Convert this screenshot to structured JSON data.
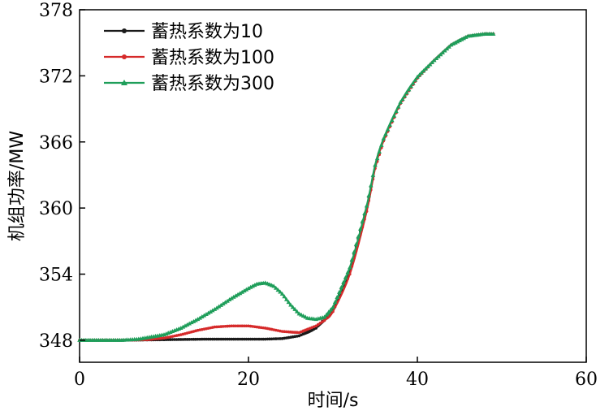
{
  "chart_data": {
    "type": "line",
    "xlabel": "时间/s",
    "ylabel": "机组功率/MW",
    "xlim": [
      0,
      60
    ],
    "ylim": [
      346,
      378
    ],
    "xticks": [
      0,
      20,
      40,
      60
    ],
    "yticks": [
      348,
      354,
      360,
      366,
      372,
      378
    ],
    "grid": false,
    "legend_position": "top-left",
    "series": [
      {
        "name": "蓄热系数为10",
        "color": "#1a1a1a",
        "marker": "circle",
        "x": [
          0,
          5,
          10,
          15,
          20,
          22,
          24,
          26,
          28,
          30,
          32,
          34,
          35,
          36,
          38,
          40,
          42,
          44,
          46,
          48,
          49
        ],
        "y": [
          348.0,
          348.0,
          348.05,
          348.1,
          348.1,
          348.1,
          348.15,
          348.4,
          349.1,
          350.8,
          354.4,
          360.0,
          363.8,
          366.2,
          369.5,
          371.8,
          373.4,
          374.8,
          375.6,
          375.8,
          375.8
        ]
      },
      {
        "name": "蓄热系数为100",
        "color": "#d62a2a",
        "marker": "circle",
        "x": [
          0,
          5,
          8,
          10,
          12,
          14,
          16,
          18,
          20,
          22,
          24,
          26,
          28,
          29,
          30,
          32,
          34,
          35,
          36,
          38,
          40,
          42,
          44,
          46,
          48,
          49
        ],
        "y": [
          348.0,
          348.0,
          348.05,
          348.2,
          348.5,
          348.9,
          349.2,
          349.3,
          349.3,
          349.1,
          348.8,
          348.7,
          349.3,
          349.8,
          350.6,
          354.0,
          359.7,
          363.6,
          366.1,
          369.5,
          371.8,
          373.4,
          374.8,
          375.6,
          375.8,
          375.8
        ]
      },
      {
        "name": "蓄热系数为300",
        "color": "#1f9e5a",
        "marker": "triangle",
        "x": [
          0,
          5,
          7,
          10,
          12,
          14,
          16,
          18,
          20,
          21,
          22,
          23,
          24,
          25,
          26,
          27,
          28,
          29,
          30,
          32,
          34,
          35,
          36,
          38,
          40,
          42,
          44,
          46,
          48,
          49
        ],
        "y": [
          348.0,
          348.0,
          348.1,
          348.5,
          349.1,
          349.9,
          350.8,
          351.8,
          352.7,
          353.1,
          353.2,
          352.9,
          352.2,
          351.2,
          350.4,
          350.0,
          349.9,
          350.1,
          351.0,
          354.6,
          360.2,
          363.9,
          366.3,
          369.6,
          371.9,
          373.4,
          374.8,
          375.6,
          375.8,
          375.8
        ]
      }
    ]
  }
}
